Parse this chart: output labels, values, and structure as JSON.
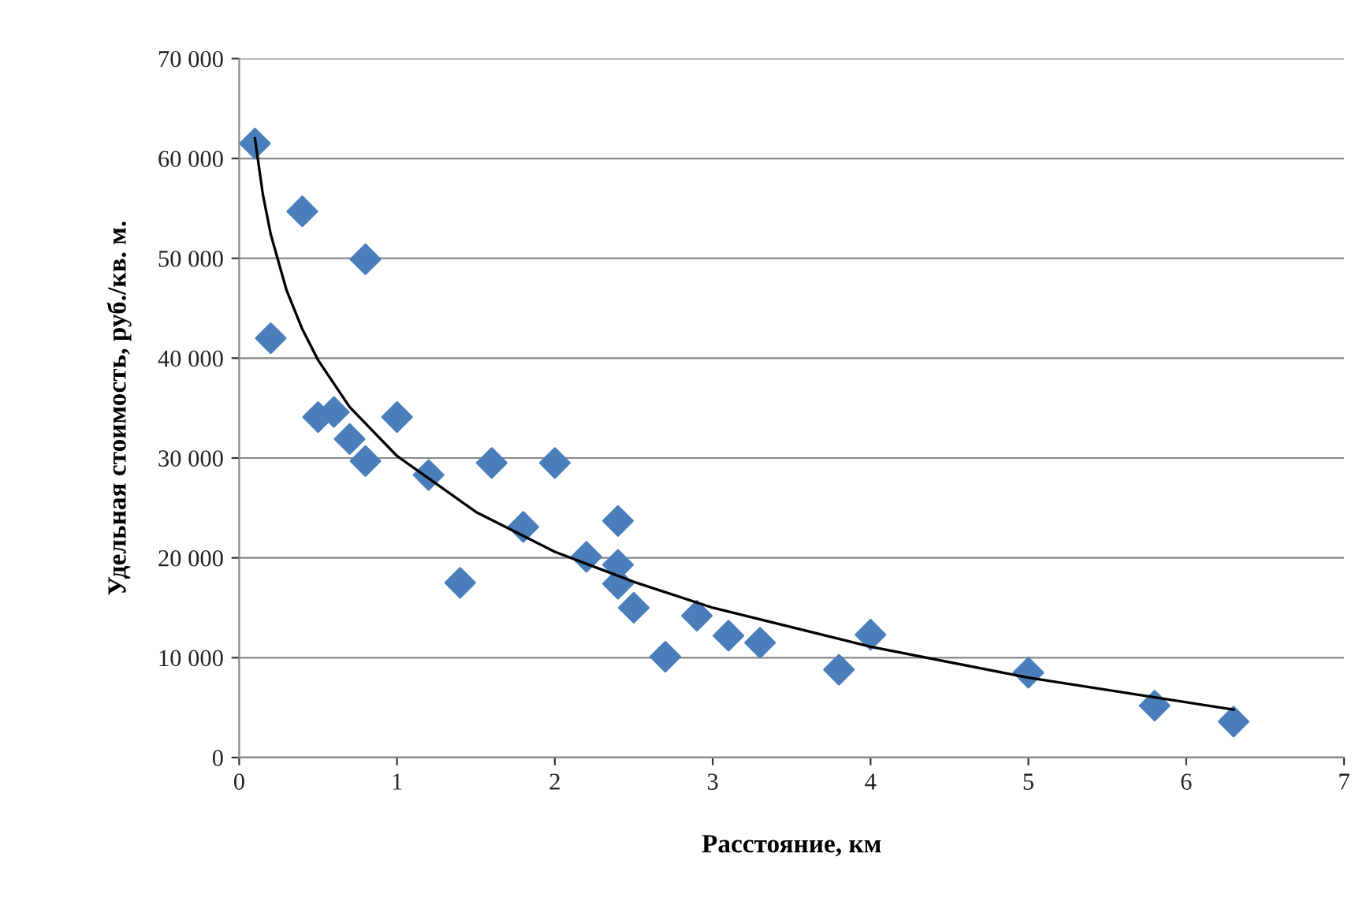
{
  "chart_data": {
    "type": "scatter",
    "xlabel": "Расстояние, км",
    "ylabel": "Удельная стоимость, руб./кв. м.",
    "xlim": [
      0,
      7
    ],
    "xticks": [
      0,
      1,
      2,
      3,
      4,
      5,
      6,
      7
    ],
    "ylim": [
      0,
      70000
    ],
    "yticks": [
      {
        "value": 0,
        "label": "0"
      },
      {
        "value": 10000,
        "label": "10 000"
      },
      {
        "value": 20000,
        "label": "20 000"
      },
      {
        "value": 30000,
        "label": "30 000"
      },
      {
        "value": 40000,
        "label": "40 000"
      },
      {
        "value": 50000,
        "label": "50 000"
      },
      {
        "value": 60000,
        "label": "60 000"
      },
      {
        "value": 70000,
        "label": "70 000"
      }
    ],
    "grid": "y",
    "marker": "diamond",
    "series": [
      {
        "color": "#4a7ebb",
        "x": [
          0.1,
          0.2,
          0.4,
          0.8,
          0.5,
          0.6,
          0.7,
          0.8,
          1.0,
          1.2,
          1.4,
          1.6,
          1.8,
          2.0,
          2.2,
          2.4,
          2.4,
          2.4,
          2.5,
          2.7,
          2.9,
          3.1,
          3.3,
          3.8,
          4.0,
          5.0,
          5.8,
          6.3
        ],
        "values": [
          61500,
          42000,
          54700,
          49900,
          34100,
          34600,
          31900,
          29700,
          34100,
          28300,
          17500,
          29500,
          23100,
          29500,
          20100,
          23700,
          19300,
          17400,
          15000,
          10100,
          14200,
          12200,
          11500,
          8800,
          12300,
          8500,
          5200,
          3600
        ]
      },
      {
        "type": "line",
        "color": "#000000",
        "marker": "none",
        "x": [
          0.1,
          0.15,
          0.2,
          0.3,
          0.4,
          0.5,
          0.7,
          1,
          1.5,
          2,
          2.5,
          3,
          4,
          5,
          6.3
        ],
        "values": [
          62000,
          56400,
          52400,
          46800,
          42900,
          39800,
          35100,
          30200,
          24600,
          20600,
          17600,
          15000,
          11100,
          8000,
          4800
        ]
      }
    ]
  }
}
